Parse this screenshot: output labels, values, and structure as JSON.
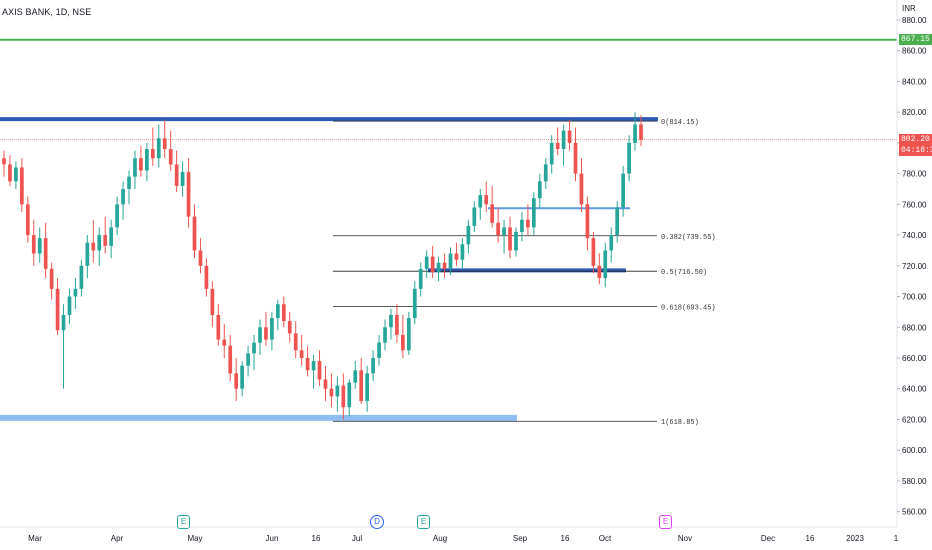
{
  "header": {
    "title": "AXIS BANK, 1D, NSE"
  },
  "colors": {
    "up": "#26a69a",
    "down": "#ef5350",
    "level_dark": "#2f5bb7",
    "level_light": "#5d9ae8",
    "green_line": "#4caf50",
    "price_line": "#f7a3a3",
    "fib": "#000000"
  },
  "chart_data": {
    "type": "candlestick",
    "currency_label": "INR",
    "ylim": [
      550,
      893
    ],
    "y_ticks": [
      "880.00",
      "860.00",
      "840.00",
      "820.00",
      "800.00",
      "780.00",
      "760.00",
      "740.00",
      "720.00",
      "700.00",
      "680.00",
      "660.00",
      "640.00",
      "620.00",
      "600.00",
      "580.00",
      "560.00"
    ],
    "x_ticks": [
      "Mar",
      "Apr",
      "May",
      "Jun",
      "16",
      "Jul",
      "Aug",
      "Sep",
      "16",
      "Oct",
      "Nov",
      "Dec",
      "16",
      "2023",
      "1"
    ],
    "current_price": {
      "label": "802.20",
      "countdown": "04:18:37",
      "value": 802.2,
      "color": "#ef5350"
    },
    "alert_level": {
      "label": "867.15",
      "value": 867.15,
      "color": "#4caf50"
    },
    "horizontal_levels": [
      {
        "name": "resistance-814",
        "value": 815.5,
        "color": "#2f5bb7"
      },
      {
        "name": "support-716",
        "value": 717,
        "color": "#2f5bb7"
      },
      {
        "name": "mid-757",
        "value": 757.5,
        "color": "#5d9ae8"
      },
      {
        "name": "support-620",
        "value": 621,
        "color": "#90bef2"
      }
    ],
    "fib_levels": [
      {
        "label": "0(814.15)",
        "value": 814.15
      },
      {
        "label": "0.382(739.55)",
        "value": 739.55
      },
      {
        "label": "0.5(716.50)",
        "value": 716.5
      },
      {
        "label": "0.618(693.45)",
        "value": 693.45
      },
      {
        "label": "1(618.85)",
        "value": 618.85
      }
    ],
    "events": [
      {
        "label": "E",
        "date": "2022-04-29",
        "kind": "earnings"
      },
      {
        "label": "D",
        "date": "2022-07-11",
        "kind": "dividend"
      },
      {
        "label": "E",
        "date": "2022-07-25",
        "kind": "earnings"
      },
      {
        "label": "E",
        "date": "2022-10-21",
        "kind": "earnings-upcoming"
      }
    ],
    "candles_ohlc": [
      [
        790,
        795,
        778,
        786
      ],
      [
        786,
        792,
        772,
        775
      ],
      [
        775,
        788,
        770,
        784
      ],
      [
        784,
        790,
        755,
        760
      ],
      [
        760,
        765,
        735,
        740
      ],
      [
        740,
        750,
        720,
        728
      ],
      [
        728,
        745,
        722,
        738
      ],
      [
        738,
        748,
        712,
        718
      ],
      [
        718,
        722,
        698,
        705
      ],
      [
        705,
        712,
        675,
        678
      ],
      [
        678,
        695,
        640,
        688
      ],
      [
        688,
        705,
        682,
        700
      ],
      [
        700,
        712,
        692,
        705
      ],
      [
        705,
        724,
        700,
        720
      ],
      [
        720,
        740,
        712,
        735
      ],
      [
        735,
        750,
        722,
        730
      ],
      [
        730,
        745,
        720,
        740
      ],
      [
        740,
        752,
        728,
        733
      ],
      [
        733,
        750,
        725,
        745
      ],
      [
        745,
        765,
        740,
        760
      ],
      [
        760,
        775,
        750,
        770
      ],
      [
        770,
        782,
        760,
        778
      ],
      [
        778,
        795,
        770,
        790
      ],
      [
        790,
        798,
        778,
        782
      ],
      [
        782,
        800,
        775,
        796
      ],
      [
        796,
        810,
        785,
        790
      ],
      [
        790,
        812,
        784,
        803
      ],
      [
        803,
        815,
        790,
        796
      ],
      [
        796,
        808,
        782,
        786
      ],
      [
        786,
        795,
        768,
        772
      ],
      [
        772,
        788,
        765,
        781
      ],
      [
        781,
        790,
        745,
        752
      ],
      [
        752,
        760,
        725,
        730
      ],
      [
        730,
        738,
        715,
        720
      ],
      [
        720,
        725,
        700,
        705
      ],
      [
        705,
        710,
        680,
        688
      ],
      [
        688,
        695,
        668,
        672
      ],
      [
        672,
        682,
        660,
        668
      ],
      [
        668,
        675,
        645,
        650
      ],
      [
        650,
        660,
        632,
        640
      ],
      [
        640,
        658,
        635,
        655
      ],
      [
        655,
        668,
        648,
        663
      ],
      [
        663,
        675,
        652,
        670
      ],
      [
        670,
        685,
        662,
        680
      ],
      [
        680,
        690,
        668,
        672
      ],
      [
        672,
        690,
        665,
        686
      ],
      [
        686,
        698,
        678,
        695
      ],
      [
        695,
        700,
        680,
        684
      ],
      [
        684,
        690,
        670,
        676
      ],
      [
        676,
        684,
        660,
        665
      ],
      [
        665,
        675,
        655,
        660
      ],
      [
        660,
        668,
        648,
        652
      ],
      [
        652,
        662,
        640,
        658
      ],
      [
        658,
        665,
        642,
        646
      ],
      [
        646,
        655,
        632,
        640
      ],
      [
        640,
        650,
        628,
        635
      ],
      [
        635,
        648,
        625,
        642
      ],
      [
        642,
        650,
        620,
        628
      ],
      [
        628,
        646,
        622,
        644
      ],
      [
        644,
        658,
        640,
        652
      ],
      [
        652,
        660,
        630,
        632
      ],
      [
        632,
        655,
        625,
        650
      ],
      [
        650,
        665,
        645,
        660
      ],
      [
        660,
        675,
        655,
        670
      ],
      [
        670,
        685,
        665,
        680
      ],
      [
        680,
        692,
        672,
        688
      ],
      [
        688,
        695,
        670,
        675
      ],
      [
        675,
        688,
        660,
        665
      ],
      [
        665,
        690,
        662,
        686
      ],
      [
        686,
        710,
        682,
        705
      ],
      [
        705,
        722,
        700,
        718
      ],
      [
        718,
        730,
        712,
        726
      ],
      [
        726,
        733,
        712,
        716
      ],
      [
        716,
        726,
        710,
        722
      ],
      [
        722,
        728,
        712,
        718
      ],
      [
        718,
        732,
        714,
        728
      ],
      [
        728,
        735,
        720,
        724
      ],
      [
        724,
        738,
        718,
        734
      ],
      [
        734,
        750,
        728,
        746
      ],
      [
        746,
        762,
        742,
        758
      ],
      [
        758,
        770,
        750,
        766
      ],
      [
        766,
        775,
        755,
        760
      ],
      [
        760,
        772,
        745,
        748
      ],
      [
        748,
        758,
        735,
        740
      ],
      [
        740,
        750,
        728,
        745
      ],
      [
        745,
        752,
        725,
        730
      ],
      [
        730,
        745,
        726,
        742
      ],
      [
        742,
        755,
        736,
        750
      ],
      [
        750,
        760,
        740,
        745
      ],
      [
        745,
        768,
        740,
        764
      ],
      [
        764,
        780,
        758,
        775
      ],
      [
        775,
        790,
        770,
        786
      ],
      [
        786,
        805,
        780,
        800
      ],
      [
        800,
        810,
        792,
        796
      ],
      [
        796,
        812,
        785,
        808
      ],
      [
        808,
        815,
        795,
        800
      ],
      [
        800,
        810,
        775,
        780
      ],
      [
        780,
        790,
        755,
        760
      ],
      [
        760,
        765,
        730,
        738
      ],
      [
        738,
        742,
        715,
        720
      ],
      [
        720,
        728,
        708,
        712
      ],
      [
        712,
        735,
        706,
        730
      ],
      [
        730,
        745,
        722,
        740
      ],
      [
        740,
        762,
        735,
        758
      ],
      [
        758,
        785,
        752,
        780
      ],
      [
        780,
        805,
        775,
        800
      ],
      [
        800,
        820,
        795,
        812
      ],
      [
        812,
        818,
        798,
        802
      ]
    ]
  }
}
